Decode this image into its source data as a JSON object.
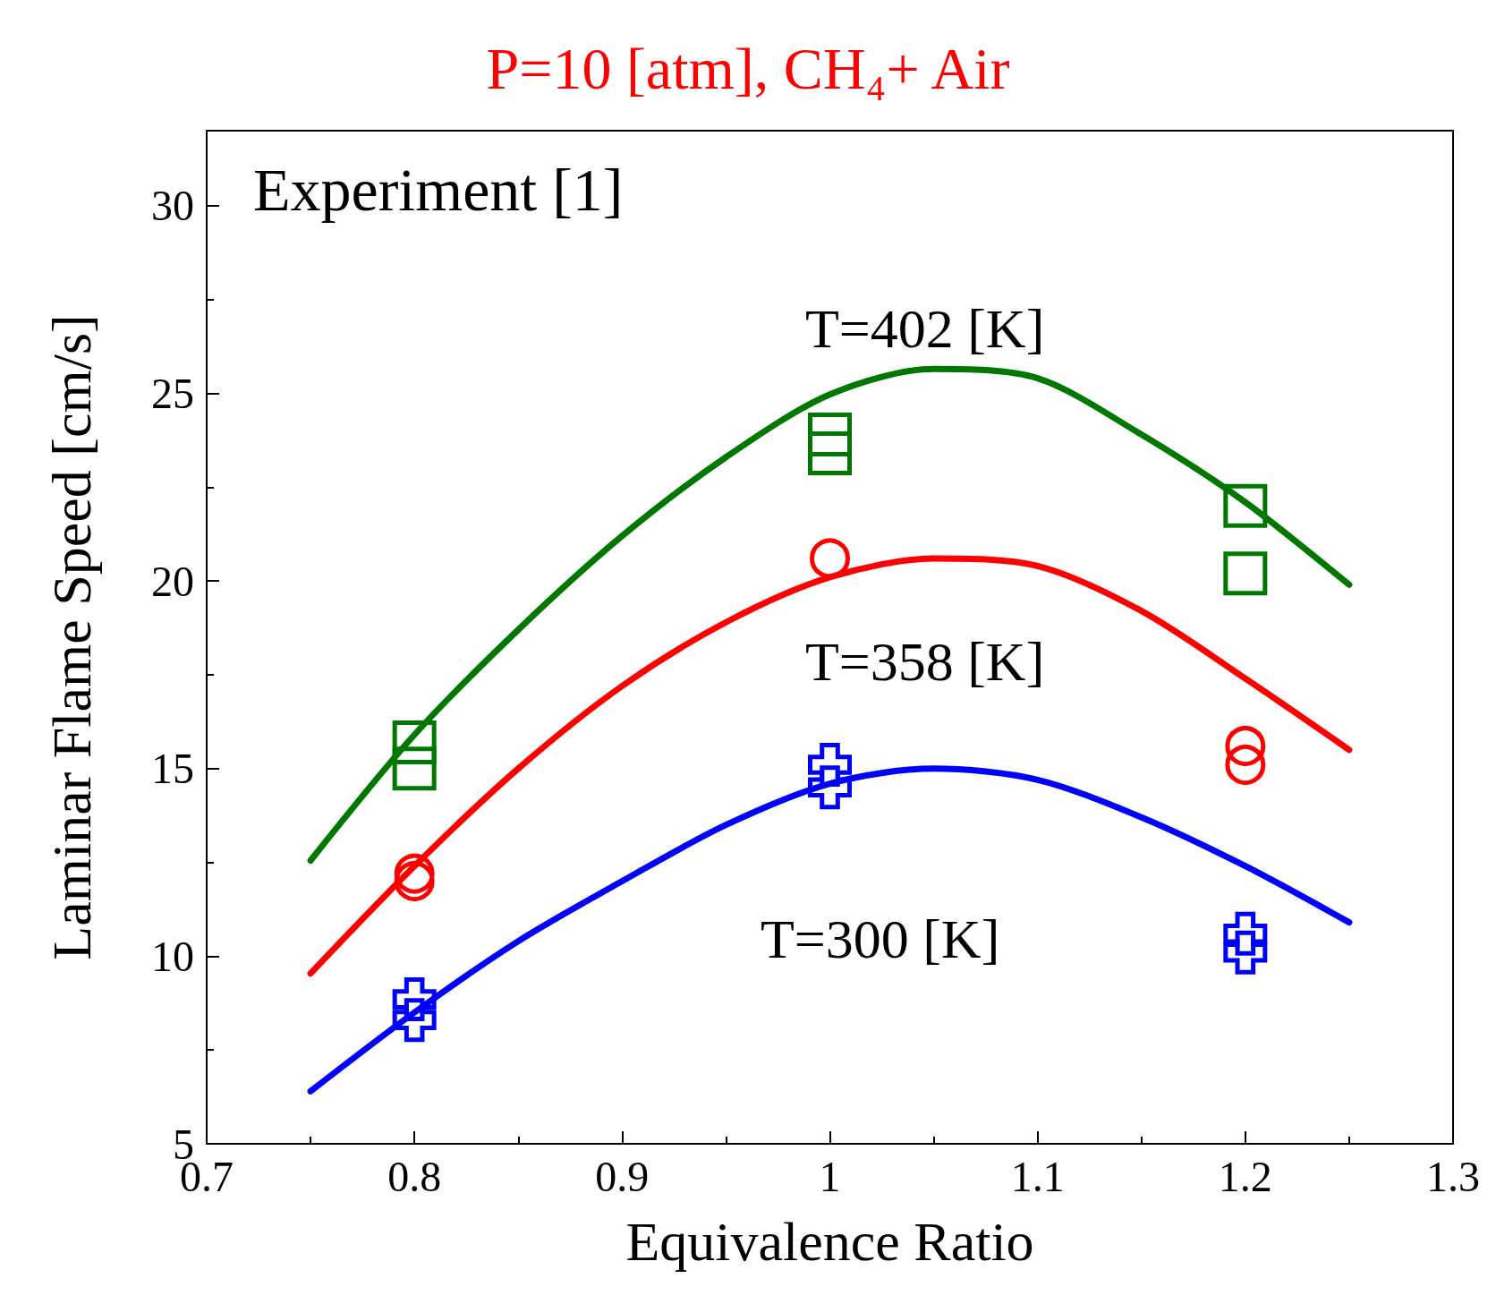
{
  "chart_data": {
    "type": "line",
    "title": "P=10 [atm], CH₄+ Air",
    "xlabel": "Equivalence Ratio",
    "ylabel": "Laminar Flame Speed [cm/s]",
    "annotations": [
      "Experiment [1]"
    ],
    "xlim": [
      0.7,
      1.3
    ],
    "xticks": [
      0.7,
      0.8,
      0.9,
      1,
      1.1,
      1.2,
      1.3
    ],
    "ylim": [
      5,
      32
    ],
    "yticks": [
      5,
      10,
      15,
      20,
      25,
      30
    ],
    "grid": false,
    "legend": false,
    "line_style": "solid",
    "series": [
      {
        "name": "T=402 [K]",
        "color": "#007800",
        "marker": "none",
        "x": [
          0.75,
          0.8,
          0.85,
          0.9,
          0.95,
          1.0,
          1.05,
          1.1,
          1.15,
          1.2,
          1.25
        ],
        "values": [
          12.55,
          15.9,
          18.7,
          21.2,
          23.3,
          24.97,
          25.65,
          25.4,
          23.9,
          22.1,
          19.9
        ]
      },
      {
        "name": "T=358 [K]",
        "color": "#ff0000",
        "marker": "none",
        "x": [
          0.75,
          0.8,
          0.85,
          0.9,
          0.95,
          1.0,
          1.05,
          1.1,
          1.15,
          1.2,
          1.25
        ],
        "values": [
          9.54,
          12.4,
          15.0,
          17.2,
          18.9,
          20.1,
          20.6,
          20.4,
          19.2,
          17.4,
          15.5
        ]
      },
      {
        "name": "T=300 [K]",
        "color": "#0000ff",
        "marker": "none",
        "x": [
          0.75,
          0.8,
          0.85,
          0.9,
          0.95,
          1.0,
          1.05,
          1.1,
          1.15,
          1.2,
          1.25
        ],
        "values": [
          6.4,
          8.5,
          10.4,
          12.0,
          13.5,
          14.6,
          15.0,
          14.7,
          13.7,
          12.4,
          10.9
        ]
      },
      {
        "color": "#007800",
        "type": "scatter",
        "marker": "square",
        "x": [
          0.8,
          0.8,
          1.0,
          1.0,
          1.2,
          1.2
        ],
        "values": [
          15.7,
          15.0,
          23.9,
          23.4,
          22.0,
          20.2
        ]
      },
      {
        "color": "#ff0000",
        "type": "scatter",
        "marker": "circle",
        "x": [
          0.8,
          0.8,
          1.0,
          1.2,
          1.2
        ],
        "values": [
          12.2,
          12.0,
          20.6,
          15.6,
          15.1
        ]
      },
      {
        "color": "#0000ff",
        "type": "scatter",
        "marker": "cross",
        "x": [
          0.8,
          0.8,
          1.0,
          1.0,
          1.2,
          1.2
        ],
        "values": [
          8.85,
          8.3,
          15.1,
          14.5,
          10.6,
          10.1
        ]
      }
    ]
  }
}
